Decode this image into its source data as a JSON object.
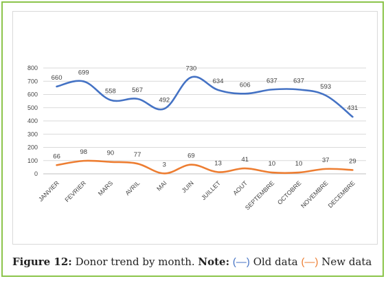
{
  "chart_data": {
    "type": "line",
    "categories": [
      "JANVIER",
      "FEVRIER",
      "MARS",
      "AVRIL",
      "MAI",
      "JUIN",
      "JUILLET",
      "AOUT",
      "SEPTEMBRE",
      "OCTOBRE",
      "NOVEMBRE",
      "DECEMBRE"
    ],
    "series": [
      {
        "key": "old",
        "color": "#4472c4",
        "values": [
          660,
          699,
          558,
          567,
          492,
          730,
          634,
          606,
          637,
          637,
          593,
          431
        ]
      },
      {
        "key": "new",
        "color": "#ed7d31",
        "values": [
          66,
          98,
          90,
          77,
          3,
          69,
          13,
          41,
          10,
          10,
          37,
          29
        ]
      }
    ],
    "yticks": [
      0,
      100,
      200,
      300,
      400,
      500,
      600,
      700,
      800
    ],
    "ylim": [
      0,
      800
    ],
    "grid": true
  },
  "caption": {
    "figure_label": "Figure 12:",
    "text": "Donor trend by month.",
    "note_label": "Note:",
    "legend_old_symbol": "(—)",
    "legend_old_text": "Old data",
    "legend_new_symbol": "(—)",
    "legend_new_text": "New data"
  }
}
